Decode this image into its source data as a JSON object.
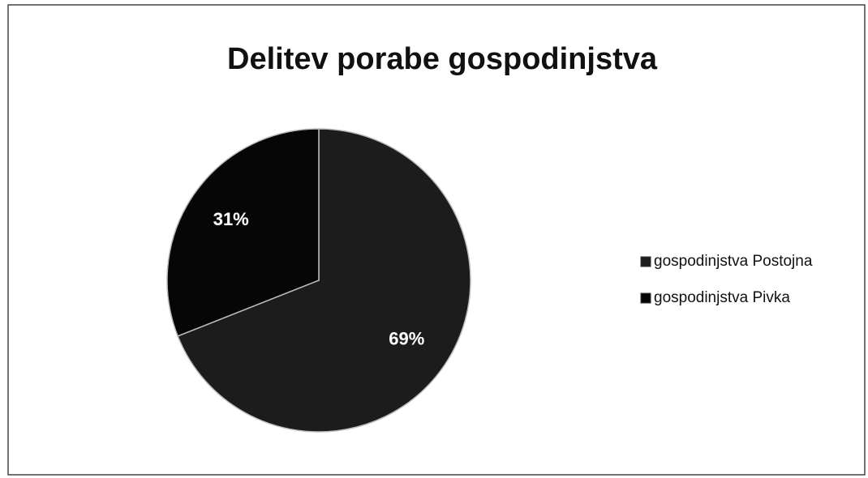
{
  "chart_data": {
    "type": "pie",
    "title": "Delitev porabe gospodinjstva",
    "categories": [
      "gospodinjstva Postojna",
      "gospodinjstva Pivka"
    ],
    "values": [
      69,
      31
    ],
    "value_labels": [
      "69%",
      "31%"
    ],
    "colors": [
      "#1c1c1c",
      "#060606"
    ],
    "legend": "right"
  }
}
